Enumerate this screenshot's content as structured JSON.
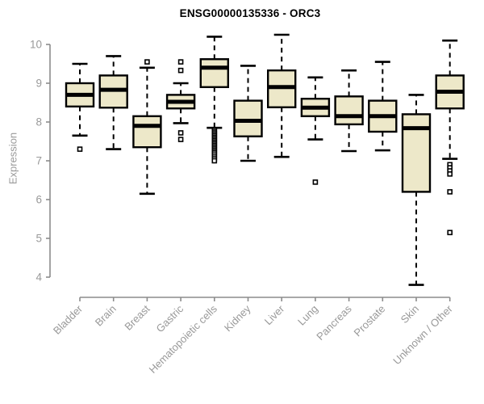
{
  "title": "ENSG00000135336 - ORC3",
  "chart_data": {
    "type": "boxplot",
    "title": "ENSG00000135336 - ORC3",
    "xlabel": "",
    "ylabel": "Expression",
    "ylim": [
      4,
      10
    ],
    "yticks": [
      4,
      5,
      6,
      7,
      8,
      9,
      10
    ],
    "grid": false,
    "legend": "none",
    "categories": [
      "Bladder",
      "Brain",
      "Breast",
      "Gastric",
      "Hematopoietic cells",
      "Kidney",
      "Liver",
      "Lung",
      "Pancreas",
      "Prostate",
      "Skin",
      "Unknown / Other"
    ],
    "boxes": [
      {
        "category": "Bladder",
        "whisker_low": 7.65,
        "q1": 8.4,
        "median": 8.7,
        "q3": 9.0,
        "whisker_high": 9.5,
        "outliers": [
          7.3
        ]
      },
      {
        "category": "Brain",
        "whisker_low": 7.3,
        "q1": 8.37,
        "median": 8.83,
        "q3": 9.2,
        "whisker_high": 9.7,
        "outliers": []
      },
      {
        "category": "Breast",
        "whisker_low": 6.15,
        "q1": 7.35,
        "median": 7.9,
        "q3": 8.15,
        "whisker_high": 9.4,
        "outliers": [
          9.55
        ]
      },
      {
        "category": "Gastric",
        "whisker_low": 7.97,
        "q1": 8.35,
        "median": 8.52,
        "q3": 8.7,
        "whisker_high": 9.0,
        "outliers": [
          9.55,
          9.33,
          7.72,
          7.55
        ]
      },
      {
        "category": "Hematopoietic cells",
        "whisker_low": 7.85,
        "q1": 8.9,
        "median": 9.4,
        "q3": 9.62,
        "whisker_high": 10.2,
        "outliers": [
          7.8,
          7.76,
          7.72,
          7.68,
          7.64,
          7.6,
          7.56,
          7.52,
          7.48,
          7.44,
          7.4,
          7.36,
          7.32,
          7.28,
          7.24,
          7.2,
          7.15,
          7.1,
          7.05,
          7.0
        ]
      },
      {
        "category": "Kidney",
        "whisker_low": 7.0,
        "q1": 7.63,
        "median": 8.03,
        "q3": 8.55,
        "whisker_high": 9.45,
        "outliers": []
      },
      {
        "category": "Liver",
        "whisker_low": 7.1,
        "q1": 8.38,
        "median": 8.9,
        "q3": 9.33,
        "whisker_high": 10.25,
        "outliers": []
      },
      {
        "category": "Lung",
        "whisker_low": 7.55,
        "q1": 8.15,
        "median": 8.37,
        "q3": 8.6,
        "whisker_high": 9.15,
        "outliers": [
          6.45
        ]
      },
      {
        "category": "Pancreas",
        "whisker_low": 7.25,
        "q1": 7.94,
        "median": 8.15,
        "q3": 8.66,
        "whisker_high": 9.33,
        "outliers": []
      },
      {
        "category": "Prostate",
        "whisker_low": 7.27,
        "q1": 7.75,
        "median": 8.15,
        "q3": 8.55,
        "whisker_high": 9.55,
        "outliers": []
      },
      {
        "category": "Skin",
        "whisker_low": 3.8,
        "q1": 6.2,
        "median": 7.84,
        "q3": 8.2,
        "whisker_high": 8.7,
        "outliers": []
      },
      {
        "category": "Unknown / Other",
        "whisker_low": 7.05,
        "q1": 8.35,
        "median": 8.78,
        "q3": 9.2,
        "whisker_high": 10.1,
        "outliers": [
          6.9,
          6.82,
          6.74,
          6.66,
          6.2,
          5.15
        ]
      }
    ],
    "colors": {
      "box_fill": "#EDE8C9",
      "box_stroke": "#000000",
      "axis": "#8C8C8C",
      "tick_label": "#999999",
      "title_color": "#000000",
      "background": "#FFFFFF"
    }
  }
}
